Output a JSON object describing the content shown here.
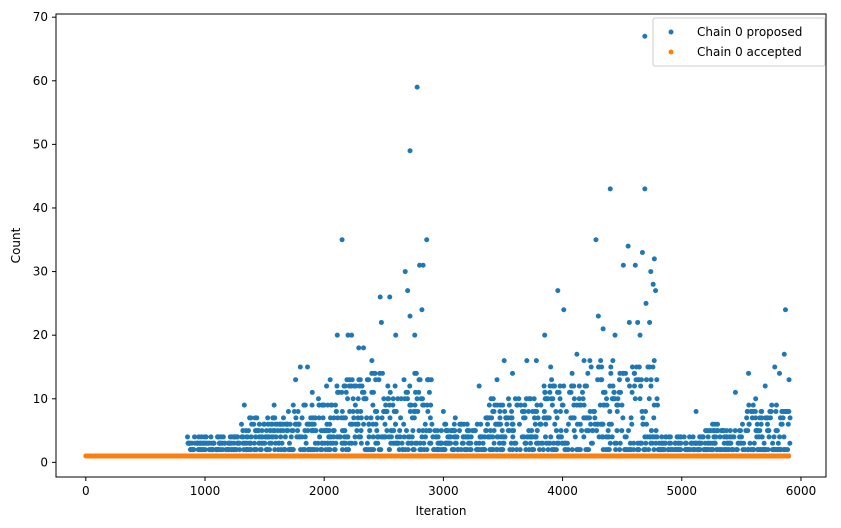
{
  "chart_data": {
    "type": "scatter",
    "xlabel": "Iteration",
    "ylabel": "Count",
    "xlim": [
      -250,
      6210
    ],
    "ylim": [
      -2.3,
      70.5
    ],
    "xticks": [
      0,
      1000,
      2000,
      3000,
      4000,
      5000,
      6000
    ],
    "yticks": [
      0,
      10,
      20,
      30,
      40,
      50,
      60,
      70
    ],
    "grid": false,
    "legend_position": "top-right",
    "series": [
      {
        "name": "Chain 0 proposed",
        "color": "#1f77b4",
        "description_of_shape": "dense band of points between 1 and ~15 from iteration ~850 onward, with spikes",
        "points": [
          [
            2150,
            35
          ],
          [
            2720,
            49
          ],
          [
            2780,
            59
          ],
          [
            2860,
            35
          ],
          [
            4400,
            43
          ],
          [
            4690,
            43
          ],
          [
            4690,
            67
          ],
          [
            4280,
            35
          ],
          [
            4550,
            34
          ],
          [
            4670,
            33
          ],
          [
            4770,
            32
          ],
          [
            4740,
            30
          ],
          [
            2680,
            30
          ],
          [
            2800,
            31
          ],
          [
            2830,
            31
          ],
          [
            3960,
            27
          ],
          [
            4010,
            24
          ],
          [
            4510,
            31
          ],
          [
            4610,
            31
          ],
          [
            4760,
            28
          ],
          [
            4780,
            27
          ],
          [
            2700,
            27
          ],
          [
            2720,
            23
          ],
          [
            2470,
            26
          ],
          [
            2550,
            26
          ],
          [
            2820,
            24
          ],
          [
            5870,
            24
          ],
          [
            4300,
            23
          ],
          [
            4340,
            21
          ],
          [
            4630,
            22
          ],
          [
            4700,
            25
          ],
          [
            2110,
            20
          ],
          [
            2200,
            20
          ],
          [
            2230,
            20
          ],
          [
            2400,
            16
          ],
          [
            2480,
            22
          ],
          [
            2600,
            20
          ],
          [
            2760,
            20
          ],
          [
            3850,
            20
          ],
          [
            4120,
            17
          ],
          [
            4440,
            20
          ],
          [
            4560,
            22
          ],
          [
            4650,
            20
          ],
          [
            4730,
            22
          ],
          [
            5860,
            17
          ],
          [
            1800,
            15
          ],
          [
            1860,
            15
          ],
          [
            1760,
            13
          ],
          [
            2020,
            12
          ],
          [
            2290,
            18
          ],
          [
            2330,
            18
          ],
          [
            3510,
            16
          ],
          [
            3580,
            14
          ],
          [
            3700,
            16
          ],
          [
            3780,
            16
          ],
          [
            3900,
            15
          ],
          [
            4080,
            14
          ],
          [
            4180,
            16
          ],
          [
            5560,
            14
          ],
          [
            5780,
            15
          ],
          [
            5900,
            13
          ],
          [
            1330,
            9
          ],
          [
            1420,
            7
          ],
          [
            1500,
            6
          ],
          [
            1580,
            9
          ],
          [
            1640,
            6
          ],
          [
            1700,
            8
          ],
          [
            1900,
            11
          ],
          [
            2050,
            13
          ],
          [
            3000,
            8
          ],
          [
            3100,
            7
          ],
          [
            3200,
            6
          ],
          [
            3300,
            12
          ],
          [
            3400,
            10
          ],
          [
            3450,
            13
          ],
          [
            5120,
            8
          ],
          [
            5300,
            6
          ],
          [
            5450,
            11
          ],
          [
            5620,
            10
          ],
          [
            5700,
            12
          ],
          [
            5820,
            14
          ],
          [
            5750,
            8
          ],
          [
            5200,
            5
          ],
          [
            5350,
            5
          ],
          [
            900,
            2
          ],
          [
            980,
            3
          ],
          [
            1050,
            4
          ],
          [
            1120,
            3
          ],
          [
            1200,
            3
          ],
          [
            1250,
            4
          ],
          [
            1350,
            4
          ],
          [
            1450,
            5
          ]
        ]
      },
      {
        "name": "Chain 0 accepted",
        "color": "#ff7f0e",
        "description_of_shape": "constant value 1 across all iterations 0 to ~5900",
        "x_range": [
          0,
          5900
        ],
        "value": 1
      }
    ]
  }
}
